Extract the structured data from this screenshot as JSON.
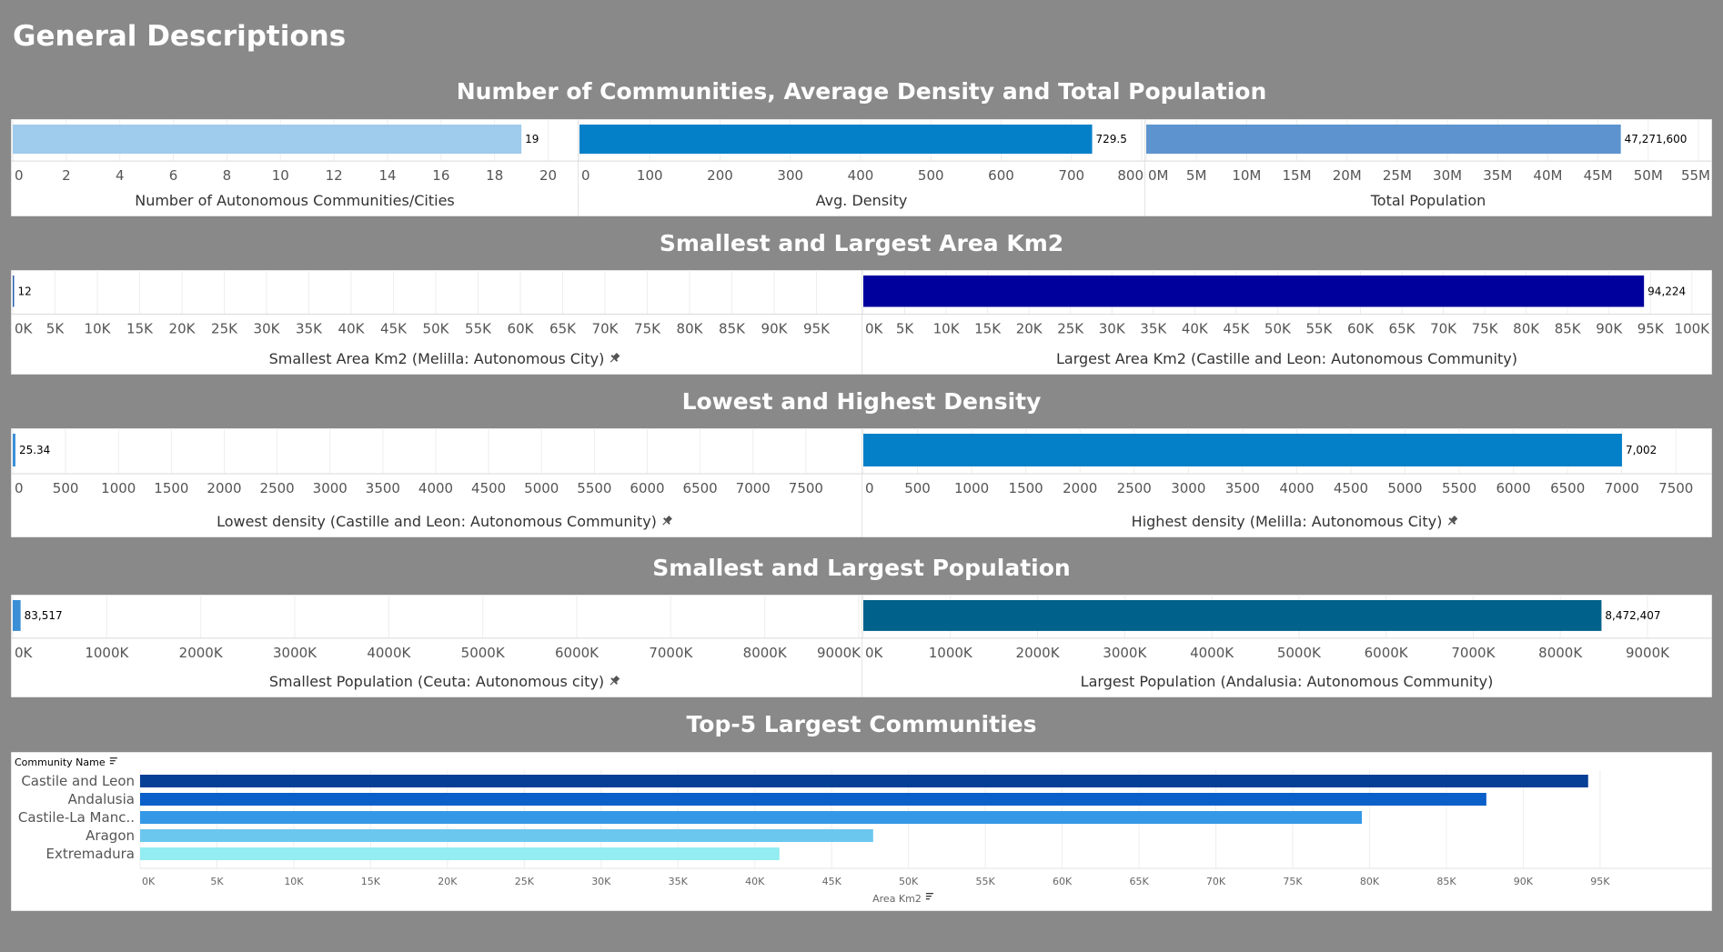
{
  "page_title": "General Descriptions",
  "sections": {
    "s1": "Number of Communities, Average Density and Total Population",
    "s2": "Smallest and Largest Area Km2",
    "s3": "Lowest and Highest Density",
    "s4": "Smallest and Largest Population",
    "s5": "Top-5 Largest Communities"
  },
  "chart_data": [
    {
      "id": "num-communities",
      "type": "bar",
      "orientation": "horizontal",
      "values": [
        19
      ],
      "value_labels": [
        "19"
      ],
      "color": "#9fcbec",
      "xlim": [
        0,
        21
      ],
      "ticks": [
        0,
        2,
        4,
        6,
        8,
        10,
        12,
        14,
        16,
        18,
        20
      ],
      "tick_labels": [
        "0",
        "2",
        "4",
        "6",
        "8",
        "10",
        "12",
        "14",
        "16",
        "18",
        "20"
      ],
      "xlabel": "Number of Autonomous Communities/Cities"
    },
    {
      "id": "avg-density",
      "type": "bar",
      "orientation": "horizontal",
      "values": [
        729.5
      ],
      "value_labels": [
        "729.5"
      ],
      "color": "#0480c9",
      "xlim": [
        0,
        800
      ],
      "ticks": [
        0,
        100,
        200,
        300,
        400,
        500,
        600,
        700,
        800
      ],
      "tick_labels": [
        "0",
        "100",
        "200",
        "300",
        "400",
        "500",
        "600",
        "700",
        "800"
      ],
      "xlabel": "Avg. Density"
    },
    {
      "id": "total-population",
      "type": "bar",
      "orientation": "horizontal",
      "values": [
        47271600
      ],
      "value_labels": [
        "47,271,600"
      ],
      "color": "#5d94cf",
      "xlim": [
        0,
        56000000
      ],
      "ticks": [
        0,
        5000000,
        10000000,
        15000000,
        20000000,
        25000000,
        30000000,
        35000000,
        40000000,
        45000000,
        50000000,
        55000000
      ],
      "tick_labels": [
        "0M",
        "5M",
        "10M",
        "15M",
        "20M",
        "25M",
        "30M",
        "35M",
        "40M",
        "45M",
        "50M",
        "55M"
      ],
      "xlabel": "Total Population"
    },
    {
      "id": "smallest-area",
      "type": "bar",
      "orientation": "horizontal",
      "values": [
        12
      ],
      "value_labels": [
        "12"
      ],
      "color": "#2a5fb0",
      "xlim": [
        0,
        100000
      ],
      "ticks": [
        0,
        5000,
        10000,
        15000,
        20000,
        25000,
        30000,
        35000,
        40000,
        45000,
        50000,
        55000,
        60000,
        65000,
        70000,
        75000,
        80000,
        85000,
        90000,
        95000
      ],
      "tick_labels": [
        "0K",
        "5K",
        "10K",
        "15K",
        "20K",
        "25K",
        "30K",
        "35K",
        "40K",
        "45K",
        "50K",
        "55K",
        "60K",
        "65K",
        "70K",
        "75K",
        "80K",
        "85K",
        "90K",
        "95K"
      ],
      "xlabel": "Smallest Area Km2 (Melilla: Autonomous City)",
      "pinned": true
    },
    {
      "id": "largest-area",
      "type": "bar",
      "orientation": "horizontal",
      "values": [
        94224
      ],
      "value_labels": [
        "94,224"
      ],
      "color": "#00009c",
      "xlim": [
        0,
        102000
      ],
      "ticks": [
        0,
        5000,
        10000,
        15000,
        20000,
        25000,
        30000,
        35000,
        40000,
        45000,
        50000,
        55000,
        60000,
        65000,
        70000,
        75000,
        80000,
        85000,
        90000,
        95000,
        100000
      ],
      "tick_labels": [
        "0K",
        "5K",
        "10K",
        "15K",
        "20K",
        "25K",
        "30K",
        "35K",
        "40K",
        "45K",
        "50K",
        "55K",
        "60K",
        "65K",
        "70K",
        "75K",
        "80K",
        "85K",
        "90K",
        "95K",
        "100K"
      ],
      "xlabel": "Largest Area Km2 (Castille and Leon: Autonomous Community)"
    },
    {
      "id": "lowest-density",
      "type": "bar",
      "orientation": "horizontal",
      "values": [
        25.34
      ],
      "value_labels": [
        "25.34"
      ],
      "color": "#3a8fd6",
      "xlim": [
        0,
        8000
      ],
      "ticks": [
        0,
        500,
        1000,
        1500,
        2000,
        2500,
        3000,
        3500,
        4000,
        4500,
        5000,
        5500,
        6000,
        6500,
        7000,
        7500
      ],
      "tick_labels": [
        "0",
        "500",
        "1000",
        "1500",
        "2000",
        "2500",
        "3000",
        "3500",
        "4000",
        "4500",
        "5000",
        "5500",
        "6000",
        "6500",
        "7000",
        "7500"
      ],
      "xlabel": "Lowest density (Castille and Leon: Autonomous Community)",
      "pinned": true
    },
    {
      "id": "highest-density",
      "type": "bar",
      "orientation": "horizontal",
      "values": [
        7002
      ],
      "value_labels": [
        "7,002"
      ],
      "color": "#0480c9",
      "xlim": [
        0,
        7800
      ],
      "ticks": [
        0,
        500,
        1000,
        1500,
        2000,
        2500,
        3000,
        3500,
        4000,
        4500,
        5000,
        5500,
        6000,
        6500,
        7000,
        7500
      ],
      "tick_labels": [
        "0",
        "500",
        "1000",
        "1500",
        "2000",
        "2500",
        "3000",
        "3500",
        "4000",
        "4500",
        "5000",
        "5500",
        "6000",
        "6500",
        "7000",
        "7500"
      ],
      "xlabel": "Highest density (Melilla: Autonomous City)",
      "pinned": true
    },
    {
      "id": "smallest-population",
      "type": "bar",
      "orientation": "horizontal",
      "values": [
        83517
      ],
      "value_labels": [
        "83,517"
      ],
      "color": "#3a8fd6",
      "xlim": [
        0,
        9000000
      ],
      "ticks": [
        0,
        1000000,
        2000000,
        3000000,
        4000000,
        5000000,
        6000000,
        7000000,
        8000000,
        9000000
      ],
      "tick_labels": [
        "0K",
        "1000K",
        "2000K",
        "3000K",
        "4000K",
        "5000K",
        "6000K",
        "7000K",
        "8000K",
        "9000K"
      ],
      "xlabel": "Smallest Population (Ceuta: Autonomous city)",
      "pinned": true
    },
    {
      "id": "largest-population",
      "type": "bar",
      "orientation": "horizontal",
      "values": [
        8472407
      ],
      "value_labels": [
        "8,472,407"
      ],
      "color": "#00628a",
      "xlim": [
        0,
        9700000
      ],
      "ticks": [
        0,
        1000000,
        2000000,
        3000000,
        4000000,
        5000000,
        6000000,
        7000000,
        8000000,
        9000000
      ],
      "tick_labels": [
        "0K",
        "1000K",
        "2000K",
        "3000K",
        "4000K",
        "5000K",
        "6000K",
        "7000K",
        "8000K",
        "9000K"
      ],
      "xlabel": "Largest Population (Andalusia: Autonomous Community)"
    },
    {
      "id": "top5",
      "type": "bar",
      "orientation": "horizontal",
      "header": "Community Name",
      "categories": [
        "Castile and Leon",
        "Andalusia",
        "Castile-La Manc..",
        "Aragon",
        "Extremadura"
      ],
      "values": [
        94224,
        87600,
        79500,
        47700,
        41600
      ],
      "colors": [
        "#063f96",
        "#0a5fc9",
        "#3498e6",
        "#6cc7ee",
        "#93edf2"
      ],
      "xlim": [
        0,
        98500
      ],
      "ticks": [
        0,
        5000,
        10000,
        15000,
        20000,
        25000,
        30000,
        35000,
        40000,
        45000,
        50000,
        55000,
        60000,
        65000,
        70000,
        75000,
        80000,
        85000,
        90000,
        95000
      ],
      "tick_labels": [
        "0K",
        "5K",
        "10K",
        "15K",
        "20K",
        "25K",
        "30K",
        "35K",
        "40K",
        "45K",
        "50K",
        "55K",
        "60K",
        "65K",
        "70K",
        "75K",
        "80K",
        "85K",
        "90K",
        "95K"
      ],
      "xlabel": "Area Km2"
    }
  ]
}
